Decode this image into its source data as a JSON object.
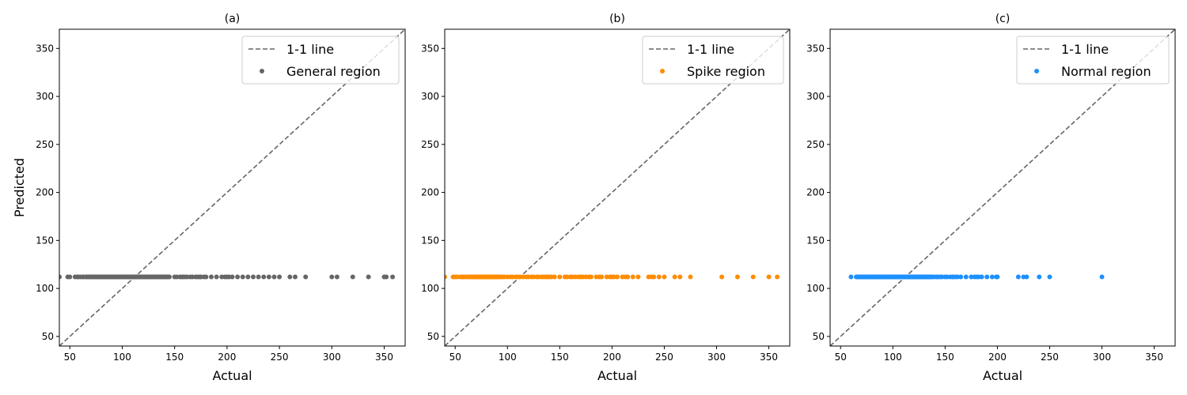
{
  "figure": {
    "ylabel": "Predicted"
  },
  "chart_data": [
    {
      "type": "scatter",
      "title": "(a)",
      "xlabel": "Actual",
      "ylabel": "Predicted",
      "xlim": [
        40,
        370
      ],
      "ylim": [
        40,
        370
      ],
      "xticks": [
        50,
        100,
        150,
        200,
        250,
        300,
        350
      ],
      "yticks": [
        50,
        100,
        150,
        200,
        250,
        300,
        350
      ],
      "grid": false,
      "legend_position": "top-right",
      "legend": [
        "1-1 line",
        "General region"
      ],
      "series": [
        {
          "name": "1-1 line",
          "kind": "line",
          "style": "dashed",
          "color": "#666666",
          "x": [
            40,
            370
          ],
          "y": [
            40,
            370
          ]
        },
        {
          "name": "General region",
          "kind": "scatter",
          "color": "#666666",
          "y_constant": 112,
          "x": [
            40,
            48,
            50,
            55,
            57,
            58,
            60,
            62,
            63,
            65,
            66,
            67,
            68,
            69,
            70,
            71,
            72,
            73,
            74,
            75,
            76,
            77,
            78,
            79,
            80,
            81,
            82,
            83,
            84,
            85,
            86,
            87,
            88,
            89,
            90,
            91,
            92,
            93,
            94,
            95,
            96,
            97,
            98,
            99,
            100,
            101,
            102,
            103,
            104,
            105,
            106,
            107,
            108,
            109,
            110,
            111,
            112,
            113,
            114,
            115,
            116,
            117,
            118,
            119,
            120,
            121,
            122,
            123,
            124,
            125,
            126,
            127,
            128,
            129,
            130,
            131,
            132,
            133,
            134,
            135,
            136,
            137,
            138,
            139,
            140,
            141,
            142,
            143,
            144,
            145,
            150,
            152,
            155,
            157,
            158,
            160,
            162,
            165,
            167,
            170,
            172,
            174,
            175,
            178,
            180,
            185,
            190,
            195,
            198,
            200,
            202,
            205,
            210,
            215,
            220,
            225,
            230,
            235,
            240,
            245,
            250,
            260,
            265,
            275,
            300,
            305,
            320,
            335,
            350,
            352,
            358
          ]
        }
      ]
    },
    {
      "type": "scatter",
      "title": "(b)",
      "xlabel": "Actual",
      "ylabel": "",
      "xlim": [
        40,
        370
      ],
      "ylim": [
        40,
        370
      ],
      "xticks": [
        50,
        100,
        150,
        200,
        250,
        300,
        350
      ],
      "yticks": [
        50,
        100,
        150,
        200,
        250,
        300,
        350
      ],
      "grid": false,
      "legend_position": "top-right",
      "legend": [
        "1-1 line",
        "Spike region"
      ],
      "series": [
        {
          "name": "1-1 line",
          "kind": "line",
          "style": "dashed",
          "color": "#666666",
          "x": [
            40,
            370
          ],
          "y": [
            40,
            370
          ]
        },
        {
          "name": "Spike region",
          "kind": "scatter",
          "color": "#ff8c00",
          "y_constant": 112,
          "x": [
            40,
            48,
            50,
            52,
            55,
            57,
            58,
            60,
            62,
            63,
            65,
            66,
            67,
            68,
            69,
            70,
            71,
            72,
            73,
            74,
            75,
            76,
            77,
            78,
            79,
            80,
            81,
            82,
            83,
            84,
            85,
            86,
            87,
            88,
            89,
            90,
            91,
            92,
            93,
            95,
            97,
            100,
            103,
            105,
            108,
            110,
            112,
            115,
            118,
            120,
            123,
            125,
            128,
            130,
            133,
            135,
            137,
            138,
            140,
            142,
            145,
            150,
            155,
            157,
            160,
            162,
            165,
            168,
            170,
            172,
            175,
            178,
            180,
            185,
            188,
            190,
            195,
            198,
            200,
            202,
            205,
            210,
            213,
            215,
            220,
            225,
            235,
            238,
            240,
            245,
            250,
            260,
            265,
            275,
            305,
            320,
            335,
            350,
            358
          ]
        }
      ]
    },
    {
      "type": "scatter",
      "title": "(c)",
      "xlabel": "Actual",
      "ylabel": "",
      "xlim": [
        40,
        370
      ],
      "ylim": [
        40,
        370
      ],
      "xticks": [
        50,
        100,
        150,
        200,
        250,
        300,
        350
      ],
      "yticks": [
        50,
        100,
        150,
        200,
        250,
        300,
        350
      ],
      "grid": false,
      "legend_position": "top-right",
      "legend": [
        "1-1 line",
        "Normal region"
      ],
      "series": [
        {
          "name": "1-1 line",
          "kind": "line",
          "style": "dashed",
          "color": "#666666",
          "x": [
            40,
            370
          ],
          "y": [
            40,
            370
          ]
        },
        {
          "name": "Normal region",
          "kind": "scatter",
          "color": "#1e90ff",
          "y_constant": 112,
          "x": [
            60,
            65,
            66,
            67,
            68,
            69,
            70,
            71,
            72,
            73,
            74,
            75,
            76,
            77,
            78,
            79,
            80,
            81,
            82,
            83,
            84,
            85,
            86,
            87,
            88,
            89,
            90,
            91,
            92,
            93,
            94,
            95,
            96,
            97,
            98,
            99,
            100,
            101,
            102,
            103,
            104,
            105,
            106,
            107,
            108,
            109,
            110,
            111,
            112,
            113,
            114,
            115,
            116,
            117,
            118,
            119,
            120,
            121,
            122,
            123,
            124,
            125,
            126,
            127,
            128,
            129,
            130,
            131,
            132,
            133,
            134,
            135,
            136,
            137,
            138,
            140,
            142,
            143,
            145,
            147,
            150,
            152,
            155,
            157,
            158,
            160,
            162,
            165,
            170,
            175,
            178,
            180,
            182,
            185,
            190,
            195,
            199,
            200,
            220,
            225,
            228,
            240,
            250,
            300
          ]
        }
      ]
    }
  ]
}
